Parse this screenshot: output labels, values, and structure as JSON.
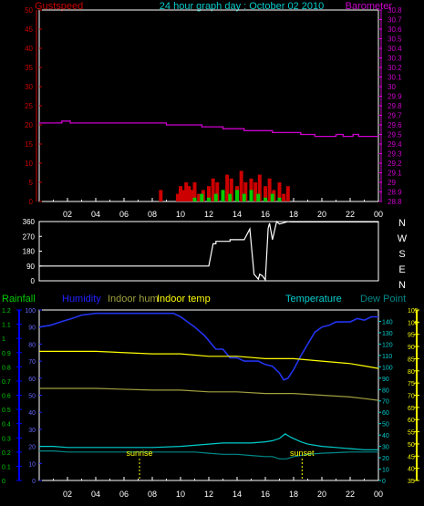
{
  "colors": {
    "background": "#000000",
    "frame": "#ffffff",
    "gust": "#cc0000",
    "wind_avg": "#00cc00",
    "barometer": "#cc00cc",
    "rain": "#00cc00",
    "humidity": "#0000cc",
    "indoor_hum": "#a0a040",
    "indoor_temp": "#ffff00",
    "temperature": "#00cccc",
    "dew_point": "#008888",
    "winddir": "#ffffff",
    "marker": "#ffff00",
    "left_axis_wind": "#cc0000",
    "left_axis_rain": "#0000ff",
    "right_axis_baro": "#cc00cc",
    "right_axis_temp": "#ffff00"
  },
  "chart_data": [
    {
      "type": "line",
      "title": "24 hour graph day : October 02 2010",
      "left_label": "Gustspeed",
      "right_label": "Barometer",
      "x_ticks": [
        "02",
        "04",
        "06",
        "08",
        "10",
        "12",
        "14",
        "16",
        "18",
        "20",
        "22",
        "00"
      ],
      "left_axis": {
        "ylim": [
          0,
          50
        ],
        "ticks": [
          "0",
          "5",
          "10",
          "15",
          "20",
          "25",
          "30",
          "35",
          "40",
          "45",
          "50"
        ]
      },
      "right_axis": {
        "ylim": [
          28.8,
          30.8
        ],
        "ticks": [
          "28.8",
          "28.9",
          "29",
          "29.1",
          "29.2",
          "29.3",
          "29.4",
          "29.5",
          "29.6",
          "29.7",
          "29.8",
          "29.9",
          "30",
          "30.1",
          "30.2",
          "30.3",
          "30.4",
          "30.5",
          "30.6",
          "30.7",
          "30.8"
        ]
      },
      "series": [
        {
          "name": "Barometer",
          "axis": "right",
          "x": [
            0,
            1.6,
            1.6,
            2.2,
            2.2,
            3,
            3,
            9,
            9,
            10,
            10,
            11.5,
            11.5,
            13,
            13,
            14.5,
            14.5,
            16.5,
            16.5,
            18.5,
            18.5,
            19.5,
            19.5,
            21,
            21,
            21.5,
            21.5,
            22.2,
            22.2,
            22.6,
            22.6,
            23,
            23,
            24
          ],
          "y": [
            29.62,
            29.62,
            29.64,
            29.64,
            29.62,
            29.62,
            29.62,
            29.62,
            29.6,
            29.6,
            29.6,
            29.6,
            29.58,
            29.58,
            29.56,
            29.56,
            29.54,
            29.54,
            29.52,
            29.52,
            29.5,
            29.5,
            29.48,
            29.48,
            29.5,
            29.5,
            29.48,
            29.48,
            29.5,
            29.5,
            29.48,
            29.48,
            29.48,
            29.48
          ]
        },
        {
          "name": "Gustspeed",
          "axis": "left",
          "x": [
            8.4,
            8.6,
            9.2,
            9.5,
            9.8,
            10,
            10.2,
            10.4,
            10.6,
            10.8,
            11,
            11.3,
            11.6,
            12,
            12.3,
            12.6,
            13,
            13.3,
            13.6,
            14,
            14.3,
            14.6,
            15,
            15.3,
            15.6,
            16,
            16.3,
            16.6,
            17,
            17.3,
            17.6,
            18
          ],
          "y": [
            0,
            3,
            0,
            0,
            2,
            4,
            3,
            5,
            4,
            3,
            5,
            2,
            3,
            4,
            6,
            5,
            3,
            7,
            6,
            4,
            8,
            5,
            6,
            5,
            7,
            4,
            6,
            3,
            5,
            2,
            4,
            0
          ]
        },
        {
          "name": "Windspeed",
          "axis": "left",
          "x": [
            10.5,
            11,
            11.5,
            12,
            12.5,
            13,
            13.5,
            14,
            14.5,
            15,
            15.5,
            16,
            16.5,
            17,
            17.5
          ],
          "y": [
            0,
            1,
            2,
            1,
            2,
            3,
            2,
            3,
            2,
            3,
            2,
            1,
            2,
            1,
            0
          ]
        }
      ]
    },
    {
      "type": "line",
      "right_label": "N W S E N",
      "compass": [
        "N",
        "W",
        "S",
        "E",
        "N"
      ],
      "x_ticks": [
        "02",
        "04",
        "06",
        "08",
        "10",
        "12",
        "14",
        "16",
        "18",
        "20",
        "22",
        "00"
      ],
      "left_axis": {
        "ylim": [
          0,
          360
        ],
        "ticks": [
          "0",
          "90",
          "180",
          "270",
          "360"
        ]
      },
      "series": [
        {
          "name": "Wind direction",
          "x": [
            0,
            12,
            12.3,
            12.5,
            12.5,
            13.5,
            13.5,
            14.5,
            14.5,
            14.9,
            15.2,
            15.3,
            15.5,
            15.6,
            15.8,
            16,
            16.2,
            16.3,
            16.5,
            16.8,
            17,
            17.2,
            17.4,
            17.6,
            17.8,
            24
          ],
          "y": [
            90,
            90,
            225,
            225,
            240,
            240,
            250,
            250,
            250,
            315,
            40,
            30,
            10,
            40,
            30,
            5,
            320,
            350,
            250,
            360,
            345,
            350,
            355,
            360,
            358,
            358
          ]
        }
      ]
    },
    {
      "type": "line",
      "legend": [
        "Rainfall",
        "Humidity",
        "Indoor hum",
        "Indoor temp",
        "Temperature",
        "Dew Point"
      ],
      "x_ticks": [
        "02",
        "04",
        "06",
        "08",
        "10",
        "12",
        "14",
        "16",
        "18",
        "20",
        "22",
        "00"
      ],
      "rain_axis": {
        "ylim": [
          0,
          1.2
        ],
        "ticks": [
          "0",
          "0.1",
          "0.2",
          "0.3",
          "0.4",
          "0.5",
          "0.6",
          "0.7",
          "0.8",
          "0.9",
          "1",
          "1.1",
          "1.2"
        ]
      },
      "humidity_axis": {
        "ylim": [
          0,
          100
        ],
        "ticks": [
          "0",
          "10",
          "20",
          "30",
          "40",
          "50",
          "60",
          "70",
          "80",
          "90",
          "100"
        ]
      },
      "temperature_axis": {
        "ylim": [
          0,
          150
        ],
        "ticks": [
          "0",
          "10",
          "20",
          "30",
          "40",
          "50",
          "60",
          "70",
          "80",
          "90",
          "100",
          "110",
          "120",
          "130",
          "140"
        ]
      },
      "indoor_axis": {
        "ylim": [
          35,
          105
        ],
        "ticks": [
          "35",
          "40",
          "45",
          "50",
          "55",
          "60",
          "65",
          "70",
          "75",
          "80",
          "85",
          "90",
          "95",
          "100",
          "105"
        ]
      },
      "markers": [
        {
          "label": "sunrise",
          "x": 7.1
        },
        {
          "label": "sunset",
          "x": 18.6
        }
      ],
      "series": [
        {
          "name": "Humidity",
          "axis": "humidity",
          "x": [
            0,
            0.8,
            1.5,
            2.3,
            3,
            4,
            5,
            8,
            9.5,
            10,
            10.5,
            11,
            11.7,
            12,
            12.5,
            13,
            13.5,
            14,
            14.5,
            15,
            15.5,
            16,
            16.5,
            17,
            17.3,
            17.6,
            18,
            18.5,
            19,
            19.5,
            20,
            20.5,
            21,
            22,
            22.5,
            23,
            23.5,
            24
          ],
          "y": [
            90,
            91,
            93,
            95,
            97,
            98,
            98,
            98,
            98,
            96,
            93,
            90,
            85,
            82,
            77,
            77,
            72,
            72,
            70,
            70,
            70,
            68,
            67,
            63,
            59,
            60,
            65,
            73,
            80,
            87,
            90,
            91,
            93,
            93,
            95,
            94,
            96,
            96
          ]
        },
        {
          "name": "Indoor hum",
          "axis": "humidity",
          "x": [
            0,
            4,
            8,
            10,
            12,
            14,
            16,
            18,
            20,
            22,
            23,
            24
          ],
          "y": [
            54,
            54,
            53,
            53,
            52,
            52,
            51,
            51,
            50,
            49,
            48,
            47
          ]
        },
        {
          "name": "Indoor temp",
          "axis": "indoor",
          "x": [
            0,
            4,
            8,
            10,
            12,
            14,
            16,
            18,
            20,
            22,
            23,
            24
          ],
          "y": [
            88,
            88,
            87,
            87,
            86,
            86,
            85,
            85,
            84,
            83,
            82,
            81
          ]
        },
        {
          "name": "Temperature",
          "axis": "temperature",
          "x": [
            0,
            1,
            2,
            4,
            6,
            8,
            10,
            11,
            12,
            13,
            14,
            15,
            16,
            16.5,
            17,
            17.4,
            17.8,
            18.5,
            19,
            20,
            21,
            22,
            23,
            24
          ],
          "y": [
            30,
            30,
            29,
            29,
            29,
            29,
            30,
            31,
            32,
            33,
            33,
            33,
            34,
            35,
            37,
            41,
            38,
            34,
            32,
            30,
            29,
            28,
            27,
            27
          ]
        },
        {
          "name": "Dew Point",
          "axis": "temperature",
          "x": [
            0,
            1,
            2,
            4,
            6,
            8,
            10,
            11,
            12,
            13,
            14,
            15,
            16,
            16.5,
            17,
            17.5,
            18,
            19,
            20,
            22,
            24
          ],
          "y": [
            26,
            26,
            25,
            25,
            25,
            25,
            25,
            25,
            24,
            23,
            23,
            22,
            21,
            21,
            19,
            19,
            21,
            23,
            24,
            25,
            25
          ]
        }
      ]
    }
  ]
}
